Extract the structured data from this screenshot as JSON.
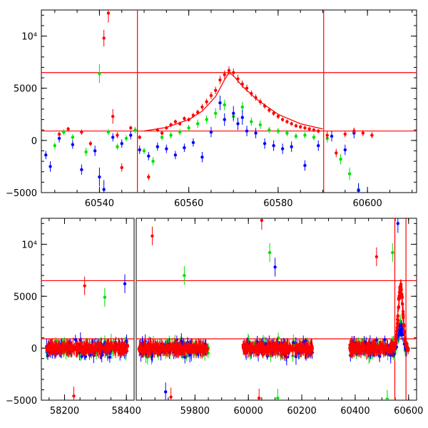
{
  "chart_data": [
    {
      "type": "scatter",
      "title": "",
      "xlabel": "",
      "ylabel": "",
      "xlim": [
        60527,
        60611
      ],
      "ylim": [
        -5000,
        12500
      ],
      "xticks": [
        60540,
        60560,
        60580,
        60600
      ],
      "x_tick_labels": [
        "60540",
        "60560",
        "60580",
        "60600"
      ],
      "yticks": [
        -5000,
        0,
        5000,
        10000
      ],
      "y_tick_labels": [
        "−5000",
        "0",
        "5000",
        "10⁴"
      ],
      "hlines": [
        6500,
        900
      ],
      "vlines": [
        60548.5,
        60590.2
      ],
      "colors": {
        "r": "#ff0000",
        "g": "#00e000",
        "b": "#0000ff",
        "line": "#ff0000"
      },
      "fit_curve": {
        "x": [
          60550,
          60555,
          60560,
          60563,
          60566,
          60568,
          60569,
          60570,
          60572,
          60575,
          60580,
          60585,
          60590
        ],
        "y": [
          900,
          1250,
          2000,
          2800,
          4200,
          5800,
          6500,
          6200,
          5200,
          4000,
          2500,
          1600,
          1100
        ]
      },
      "series": [
        {
          "color_key": "r",
          "points": [
            [
              60531,
              600,
              200
            ],
            [
              60533,
              1100,
              200
            ],
            [
              60536,
              800,
              250
            ],
            [
              60538,
              -300,
              250
            ],
            [
              60541,
              9800,
              800
            ],
            [
              60542,
              12200,
              900
            ],
            [
              60543,
              2300,
              700
            ],
            [
              60544,
              500,
              300
            ],
            [
              60545,
              -2600,
              400
            ],
            [
              60547,
              1200,
              200
            ],
            [
              60549,
              300,
              200
            ],
            [
              60551,
              -3500,
              300
            ],
            [
              60553,
              1000,
              200
            ],
            [
              60554,
              700,
              200
            ],
            [
              60555,
              1200,
              200
            ],
            [
              60556,
              1500,
              200
            ],
            [
              60557,
              1800,
              200
            ],
            [
              60558,
              1600,
              200
            ],
            [
              60559,
              2100,
              200
            ],
            [
              60560,
              2000,
              200
            ],
            [
              60561,
              2400,
              250
            ],
            [
              60562,
              2700,
              250
            ],
            [
              60563,
              3200,
              300
            ],
            [
              60564,
              3700,
              300
            ],
            [
              60565,
              4300,
              350
            ],
            [
              60566,
              4800,
              350
            ],
            [
              60567,
              5800,
              400
            ],
            [
              60568,
              6300,
              400
            ],
            [
              60569,
              6700,
              400
            ],
            [
              60570,
              6500,
              400
            ],
            [
              60571,
              5900,
              400
            ],
            [
              60572,
              5400,
              350
            ],
            [
              60573,
              5000,
              350
            ],
            [
              60574,
              4500,
              300
            ],
            [
              60575,
              4100,
              300
            ],
            [
              60576,
              3700,
              300
            ],
            [
              60577,
              3300,
              250
            ],
            [
              60578,
              2900,
              250
            ],
            [
              60579,
              2600,
              250
            ],
            [
              60580,
              2300,
              250
            ],
            [
              60581,
              2000,
              200
            ],
            [
              60582,
              1800,
              200
            ],
            [
              60583,
              1600,
              200
            ],
            [
              60584,
              1400,
              200
            ],
            [
              60585,
              1300,
              200
            ],
            [
              60586,
              1200,
              200
            ],
            [
              60587,
              1100,
              200
            ],
            [
              60588,
              1000,
              200
            ],
            [
              60589,
              900,
              200
            ],
            [
              60591,
              500,
              400
            ],
            [
              60593,
              -1200,
              400
            ],
            [
              60595,
              600,
              300
            ],
            [
              60597,
              900,
              300
            ],
            [
              60599,
              700,
              300
            ],
            [
              60601,
              500,
              300
            ]
          ]
        },
        {
          "color_key": "g",
          "points": [
            [
              60530,
              -500,
              300
            ],
            [
              60532,
              800,
              300
            ],
            [
              60534,
              300,
              300
            ],
            [
              60537,
              -1100,
              400
            ],
            [
              60540,
              6400,
              900
            ],
            [
              60542,
              800,
              300
            ],
            [
              60544,
              -600,
              300
            ],
            [
              60546,
              200,
              300
            ],
            [
              60548,
              1000,
              300
            ],
            [
              60550,
              -1000,
              300
            ],
            [
              60552,
              -2000,
              400
            ],
            [
              60554,
              300,
              300
            ],
            [
              60556,
              500,
              300
            ],
            [
              60558,
              800,
              300
            ],
            [
              60560,
              1200,
              300
            ],
            [
              60562,
              1600,
              400
            ],
            [
              60564,
              2000,
              400
            ],
            [
              60566,
              2600,
              500
            ],
            [
              60568,
              3400,
              500
            ],
            [
              60570,
              2300,
              500
            ],
            [
              60572,
              3200,
              500
            ],
            [
              60574,
              1800,
              400
            ],
            [
              60576,
              1500,
              400
            ],
            [
              60578,
              1000,
              300
            ],
            [
              60580,
              900,
              300
            ],
            [
              60582,
              700,
              300
            ],
            [
              60584,
              400,
              300
            ],
            [
              60586,
              500,
              300
            ],
            [
              60588,
              300,
              300
            ],
            [
              60591,
              200,
              400
            ],
            [
              60594,
              -1800,
              500
            ],
            [
              60596,
              -3200,
              600
            ],
            [
              60598,
              -4700,
              600
            ]
          ]
        },
        {
          "color_key": "b",
          "points": [
            [
              60528,
              -1400,
              400
            ],
            [
              60529,
              -2500,
              500
            ],
            [
              60531,
              200,
              400
            ],
            [
              60534,
              -400,
              400
            ],
            [
              60536,
              -2800,
              500
            ],
            [
              60539,
              -1000,
              500
            ],
            [
              60540,
              -3500,
              900
            ],
            [
              60541,
              -4700,
              900
            ],
            [
              60543,
              300,
              400
            ],
            [
              60545,
              -300,
              400
            ],
            [
              60547,
              500,
              400
            ],
            [
              60549,
              -900,
              400
            ],
            [
              60551,
              -1500,
              400
            ],
            [
              60553,
              -600,
              400
            ],
            [
              60555,
              -800,
              400
            ],
            [
              60557,
              -1400,
              400
            ],
            [
              60559,
              -700,
              400
            ],
            [
              60561,
              -200,
              400
            ],
            [
              60563,
              -1600,
              500
            ],
            [
              60565,
              800,
              500
            ],
            [
              60567,
              3600,
              700
            ],
            [
              60568,
              2000,
              600
            ],
            [
              60570,
              2600,
              700
            ],
            [
              60571,
              1600,
              600
            ],
            [
              60572,
              2200,
              700
            ],
            [
              60573,
              900,
              500
            ],
            [
              60575,
              700,
              500
            ],
            [
              60577,
              -300,
              500
            ],
            [
              60579,
              -500,
              500
            ],
            [
              60581,
              -800,
              500
            ],
            [
              60583,
              -600,
              500
            ],
            [
              60586,
              -2400,
              500
            ],
            [
              60589,
              -500,
              500
            ],
            [
              60592,
              400,
              500
            ],
            [
              60595,
              -900,
              500
            ],
            [
              60597,
              700,
              500
            ],
            [
              60598,
              -4800,
              700
            ]
          ]
        }
      ]
    },
    {
      "type": "scatter",
      "title": "",
      "xlabel": "",
      "ylabel": "",
      "ylim": [
        -5000,
        12500
      ],
      "x_segments": [
        {
          "xlim": [
            58125,
            58425
          ],
          "xticks": [
            58200,
            58400
          ],
          "x_tick_labels": [
            "58200",
            "58400"
          ]
        },
        {
          "xlim": [
            59580,
            60630
          ],
          "xticks": [
            59800,
            60000,
            60200,
            60400,
            60600
          ],
          "x_tick_labels": [
            "59800",
            "60000",
            "60200",
            "60400",
            "60600"
          ]
        }
      ],
      "yticks": [
        -5000,
        0,
        5000,
        10000
      ],
      "y_tick_labels": [
        "−5000",
        "0",
        "5000",
        "10⁴"
      ],
      "hlines": [
        6500,
        900
      ],
      "vlines": [
        60548.5,
        60590.2
      ],
      "colors": {
        "r": "#ff0000",
        "g": "#00e000",
        "b": "#0000ff"
      },
      "observing_seasons": [
        {
          "xrange": [
            58140,
            58405
          ],
          "ylim": [
            -4000,
            4000
          ],
          "extremes": [
            [
              58265,
              6000
            ],
            [
              58330,
              4900
            ],
            [
              58395,
              6200
            ],
            [
              58230,
              -4600
            ]
          ]
        },
        {
          "xrange": [
            59590,
            59850
          ],
          "ylim": [
            -4500,
            5000
          ],
          "extremes": [
            [
              59640,
              10800
            ],
            [
              59760,
              7000
            ],
            [
              59690,
              -4200
            ],
            [
              59710,
              -4700
            ]
          ]
        },
        {
          "xrange": [
            59980,
            60240
          ],
          "ylim": [
            -4500,
            4500
          ],
          "extremes": [
            [
              60050,
              12300
            ],
            [
              60080,
              9200
            ],
            [
              60100,
              7800
            ],
            [
              60040,
              -4800
            ],
            [
              60110,
              -4800
            ]
          ]
        },
        {
          "xrange": [
            60380,
            60600
          ],
          "ylim": [
            -4500,
            4500
          ],
          "extremes": [
            [
              60480,
              8800
            ],
            [
              60540,
              9200
            ],
            [
              60560,
              12000
            ],
            [
              60570,
              5600
            ],
            [
              60520,
              -4900
            ]
          ]
        }
      ]
    }
  ]
}
